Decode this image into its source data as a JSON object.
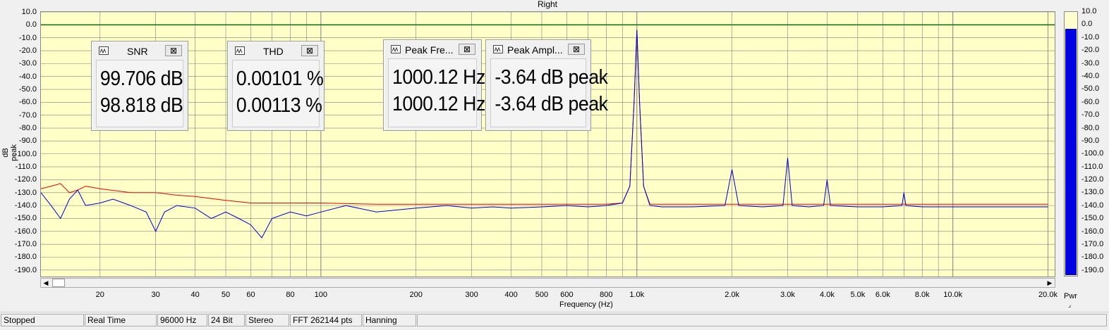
{
  "title": "Right",
  "y_axis_label": "dB peak",
  "x_axis_label": "Frequency (Hz)",
  "y_ticks": [
    "10.0",
    "0.0",
    "-10.0",
    "-20.0",
    "-30.0",
    "-40.0",
    "-50.0",
    "-60.0",
    "-70.0",
    "-80.0",
    "-90.0",
    "-100.0",
    "-110.0",
    "-120.0",
    "-130.0",
    "-140.0",
    "-150.0",
    "-160.0",
    "-170.0",
    "-180.0",
    "-190.0"
  ],
  "x_ticks": [
    "20",
    "30",
    "40",
    "50",
    "60",
    "80",
    "100",
    "200",
    "300",
    "400",
    "500",
    "600",
    "800",
    "1.0k",
    "2.0k",
    "3.0k",
    "4.0k",
    "5.0k",
    "6.0k",
    "8.0k",
    "10.0k",
    "20.0k"
  ],
  "meters": [
    {
      "title": "SNR",
      "line1": "99.706 dB",
      "line2": "98.818 dB"
    },
    {
      "title": "THD",
      "line1": "0.00101 %",
      "line2": "0.00113 %"
    },
    {
      "title": "Peak Fre...",
      "line1": "1000.12 Hz",
      "line2": "1000.12 Hz"
    },
    {
      "title": "Peak Ampl...",
      "line1": "-3.64 dB peak",
      "line2": "-3.64 dB peak"
    }
  ],
  "close_glyph": "⊠",
  "pwr": {
    "label": "Pwr",
    "level_db": -3.6,
    "ticks": [
      "10.0",
      "0.0",
      "-10.0",
      "-20.0",
      "-30.0",
      "-40.0",
      "-50.0",
      "-60.0",
      "-70.0",
      "-80.0",
      "-90.0",
      "-100.0",
      "-110.0",
      "-120.0",
      "-130.0",
      "-140.0",
      "-150.0",
      "-160.0",
      "-170.0",
      "-180.0",
      "-190.0"
    ]
  },
  "status": [
    "Stopped",
    "Real Time",
    "96000 Hz",
    "24 Bit",
    "Stereo",
    "FFT 262144 pts",
    "Hanning"
  ],
  "colors": {
    "plot_bg": "#ffffc8",
    "grid": "#808080",
    "zero_line": "#006400",
    "blue": "#0000cc",
    "red": "#ee0000",
    "pwr_fill": "#0000e0"
  },
  "chart_data": {
    "type": "line",
    "title": "Right",
    "xlabel": "Frequency (Hz)",
    "ylabel": "dB peak",
    "x_scale": "log",
    "xlim": [
      13,
      21000
    ],
    "ylim": [
      -195,
      10
    ],
    "grid": true,
    "reference_line_y": 0,
    "series": [
      {
        "color": "blue",
        "x": [
          13,
          14,
          15,
          16,
          17,
          18,
          20,
          22,
          25,
          28,
          30,
          32,
          35,
          40,
          45,
          50,
          55,
          60,
          65,
          70,
          80,
          90,
          100,
          120,
          150,
          200,
          250,
          300,
          350,
          400,
          500,
          600,
          700,
          800,
          900,
          950,
          980,
          1000,
          1020,
          1050,
          1100,
          1200,
          1500,
          1900,
          2000,
          2100,
          2500,
          2900,
          3000,
          3100,
          3500,
          3900,
          4000,
          4100,
          5000,
          6000,
          6900,
          7000,
          7100,
          8000,
          10000,
          12000,
          15000,
          20000
        ],
        "y": [
          -130,
          -140,
          -150,
          -135,
          -128,
          -140,
          -138,
          -135,
          -140,
          -145,
          -160,
          -145,
          -140,
          -142,
          -150,
          -145,
          -150,
          -155,
          -165,
          -150,
          -145,
          -148,
          -145,
          -140,
          -145,
          -142,
          -140,
          -142,
          -141,
          -142,
          -141,
          -140,
          -141,
          -140,
          -138,
          -125,
          -60,
          -4,
          -60,
          -125,
          -140,
          -141,
          -141,
          -140,
          -112,
          -140,
          -141,
          -140,
          -103,
          -140,
          -141,
          -140,
          -120,
          -140,
          -141,
          -141,
          -140,
          -130,
          -140,
          -141,
          -141,
          -141,
          -141,
          -141
        ]
      },
      {
        "color": "red",
        "x": [
          13,
          14,
          15,
          16,
          17,
          18,
          20,
          25,
          30,
          35,
          40,
          50,
          60,
          80,
          100,
          150,
          200,
          300,
          400,
          500,
          600,
          800,
          900,
          950,
          980,
          1000,
          1020,
          1050,
          1100,
          1500,
          2000,
          3000,
          4000,
          5000,
          7000,
          10000,
          15000,
          20000
        ],
        "y": [
          -127,
          -125,
          -123,
          -130,
          -128,
          -125,
          -127,
          -130,
          -130,
          -132,
          -133,
          -136,
          -138,
          -138,
          -138,
          -139,
          -139,
          -139,
          -139,
          -139,
          -139,
          -139,
          -138,
          -125,
          -60,
          -4,
          -60,
          -125,
          -139,
          -139,
          -139,
          -139,
          -139,
          -139,
          -139,
          -139,
          -139,
          -139
        ]
      }
    ]
  }
}
